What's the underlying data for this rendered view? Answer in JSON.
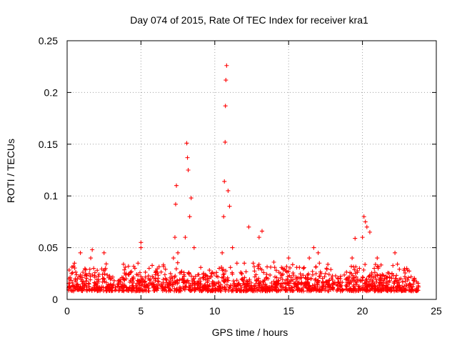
{
  "chart_data": {
    "type": "scatter",
    "title": "Day 074 of 2015, Rate Of TEC Index for receiver kra1",
    "xlabel": "GPS time / hours",
    "ylabel": "ROTI / TECUs",
    "xlim": [
      0,
      25
    ],
    "ylim": [
      0,
      0.25
    ],
    "x_ticks": [
      0,
      5,
      10,
      15,
      20,
      25
    ],
    "x_tick_labels": [
      "0",
      "5",
      "10",
      "15",
      "20",
      "25"
    ],
    "y_ticks": [
      0,
      0.05,
      0.1,
      0.15,
      0.2,
      0.25
    ],
    "y_tick_labels": [
      "0",
      "0.05",
      "0.1",
      "0.15",
      "0.2",
      "0.25"
    ],
    "grid": true,
    "marker": "+",
    "color": "#ff0000",
    "series": [
      {
        "name": "ROTI",
        "x": [
          0.1,
          0.2,
          0.3,
          0.5,
          0.7,
          0.9,
          1.2,
          1.5,
          1.6,
          1.7,
          1.8,
          2.1,
          2.4,
          2.5,
          2.6,
          3.0,
          3.5,
          4.0,
          4.5,
          4.8,
          5.0,
          5.0,
          5.5,
          6.0,
          6.5,
          7.0,
          7.2,
          7.3,
          7.35,
          7.4,
          7.5,
          7.8,
          8.0,
          8.1,
          8.15,
          8.2,
          8.3,
          8.4,
          8.6,
          9.0,
          9.5,
          10.0,
          10.3,
          10.5,
          10.6,
          10.65,
          10.7,
          10.72,
          10.75,
          10.8,
          10.9,
          11.0,
          11.2,
          11.5,
          11.8,
          12.0,
          12.3,
          12.6,
          13.0,
          13.2,
          13.6,
          14.0,
          14.5,
          15.0,
          15.5,
          16.0,
          16.4,
          16.7,
          17.0,
          17.5,
          18.0,
          18.5,
          19.0,
          19.3,
          19.5,
          19.8,
          20.0,
          20.1,
          20.2,
          20.3,
          20.5,
          20.8,
          21.0,
          21.5,
          22.0,
          22.2,
          22.6,
          23.0,
          23.5,
          23.8
        ],
        "y": [
          0.01,
          0.02,
          0.025,
          0.035,
          0.02,
          0.045,
          0.015,
          0.025,
          0.04,
          0.048,
          0.03,
          0.012,
          0.02,
          0.045,
          0.03,
          0.02,
          0.015,
          0.025,
          0.02,
          0.035,
          0.05,
          0.055,
          0.02,
          0.02,
          0.015,
          0.025,
          0.04,
          0.06,
          0.092,
          0.11,
          0.045,
          0.02,
          0.06,
          0.151,
          0.137,
          0.125,
          0.08,
          0.098,
          0.05,
          0.02,
          0.02,
          0.015,
          0.03,
          0.045,
          0.08,
          0.114,
          0.152,
          0.187,
          0.212,
          0.226,
          0.105,
          0.09,
          0.05,
          0.035,
          0.025,
          0.035,
          0.07,
          0.035,
          0.06,
          0.066,
          0.02,
          0.036,
          0.015,
          0.04,
          0.02,
          0.03,
          0.04,
          0.05,
          0.045,
          0.025,
          0.015,
          0.02,
          0.02,
          0.04,
          0.059,
          0.03,
          0.06,
          0.08,
          0.075,
          0.07,
          0.065,
          0.03,
          0.04,
          0.02,
          0.025,
          0.045,
          0.02,
          0.03,
          0.018,
          0.012
        ]
      }
    ]
  }
}
